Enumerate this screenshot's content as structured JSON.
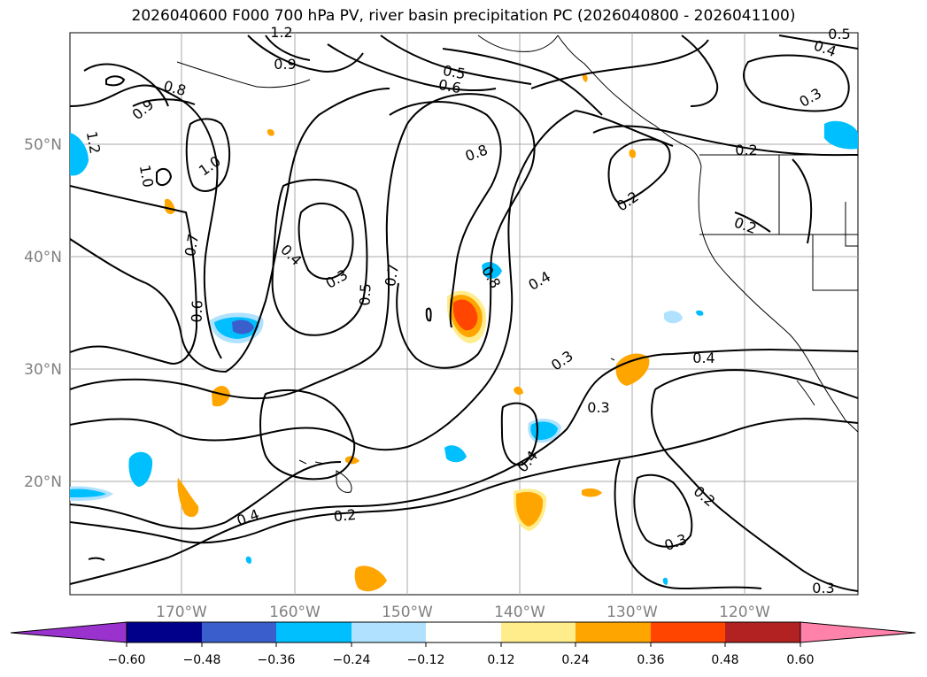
{
  "title": "2026040600 F000 700 hPa PV, river basin precipitation PC (2026040800 - 2026041100)",
  "lat_labels": [
    "50°N",
    "40°N",
    "30°N",
    "20°N"
  ],
  "lon_labels": [
    "170°W",
    "160°W",
    "150°W",
    "140°W",
    "130°W",
    "120°W"
  ],
  "contour_labels": [
    "0.2",
    "0.2",
    "0.2",
    "0.2",
    "0.2",
    "0.3",
    "0.3",
    "0.3",
    "0.3",
    "0.3",
    "0.3",
    "0.4",
    "0.4",
    "0.4",
    "0.4",
    "0.4",
    "0.5",
    "0.5",
    "0.6",
    "0.6",
    "0.7",
    "0.7",
    "0.8",
    "0.8",
    "0.8",
    "1.0",
    "1.0",
    "1.2",
    "1.2",
    "0.9",
    "0.9",
    "0.4",
    "0.5"
  ],
  "colorbar": {
    "tick_labels": [
      "−0.60",
      "−0.48",
      "−0.36",
      "−0.24",
      "−0.12",
      "0.12",
      "0.24",
      "0.36",
      "0.48",
      "0.60"
    ],
    "colors": [
      "#9a32cd",
      "#00008b",
      "#3a5fcd",
      "#00bfff",
      "#b0e2ff",
      "#ffffff",
      "#ffec8b",
      "#ffa500",
      "#ff4500",
      "#b22222",
      "#ff82ab"
    ]
  }
}
